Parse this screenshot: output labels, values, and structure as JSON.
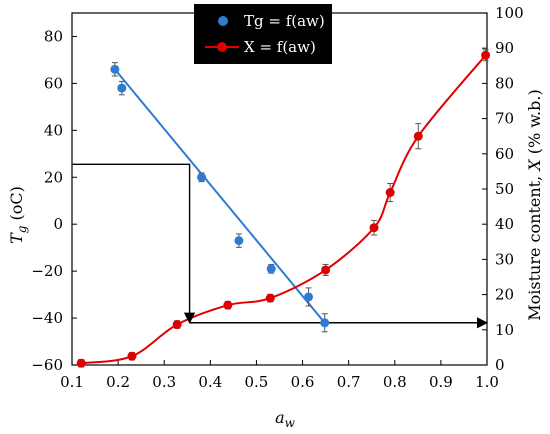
{
  "chart_data": {
    "type": "scatter",
    "x_axis": {
      "label_main": "a",
      "label_sub": "w",
      "range": [
        0.1,
        1.0
      ],
      "ticks": [
        "0.1",
        "0.2",
        "0.3",
        "0.4",
        "0.5",
        "0.6",
        "0.7",
        "0.8",
        "0.9",
        "1.0"
      ]
    },
    "y_left_axis": {
      "label_main": "T",
      "label_sub": "g",
      "label_unit": " (oC)",
      "range": [
        -60,
        90
      ],
      "ticks": [
        "80",
        "60",
        "40",
        "20",
        "0",
        "−20",
        "−40",
        "−60"
      ]
    },
    "y_right_axis": {
      "label_prefix": "Moisture content, ",
      "label_var": "X",
      "label_unit": " (% w.b.)",
      "range": [
        0,
        100
      ],
      "ticks": [
        "100",
        "90",
        "80",
        "70",
        "60",
        "50",
        "40",
        "30",
        "20",
        "10",
        "0"
      ]
    },
    "legend": {
      "position": "top-center",
      "background": "#000000"
    },
    "series": [
      {
        "name": "Tg = f(aw)",
        "axis": "left",
        "color": "#2e7bd1",
        "points": [
          {
            "x": 0.193,
            "y": 66,
            "err": 2
          },
          {
            "x": 0.208,
            "y": 58,
            "err": 2
          },
          {
            "x": 0.381,
            "y": 20,
            "err": 1
          },
          {
            "x": 0.462,
            "y": -7,
            "err": 2
          },
          {
            "x": 0.532,
            "y": -19,
            "err": 1
          },
          {
            "x": 0.613,
            "y": -31,
            "err": 3
          },
          {
            "x": 0.648,
            "y": -42,
            "err": 3
          }
        ],
        "fit": [
          [
            0.193,
            66
          ],
          [
            0.648,
            -42
          ]
        ]
      },
      {
        "name": "X = f(aw)",
        "axis": "right",
        "color": "#e00000",
        "points": [
          {
            "x": 0.12,
            "y": 0.5,
            "err": 0.5
          },
          {
            "x": 0.23,
            "y": 2.5,
            "err": 0.5
          },
          {
            "x": 0.328,
            "y": 11.5,
            "err": 0.5
          },
          {
            "x": 0.438,
            "y": 17,
            "err": 0.5
          },
          {
            "x": 0.53,
            "y": 19,
            "err": 0.5
          },
          {
            "x": 0.65,
            "y": 27,
            "err": 1
          },
          {
            "x": 0.755,
            "y": 39,
            "err": 1.5
          },
          {
            "x": 0.79,
            "y": 49,
            "err": 2
          },
          {
            "x": 0.851,
            "y": 65,
            "err": 3
          },
          {
            "x": 0.997,
            "y": 88,
            "err": 1
          }
        ]
      }
    ],
    "annotations": {
      "arrow_color": "#000000",
      "path_1": [
        [
          0.1,
          25.5
        ],
        [
          0.355,
          25.5
        ],
        [
          0.355,
          -42
        ]
      ],
      "path_2": [
        [
          0.355,
          -42
        ],
        [
          1.0,
          -42
        ]
      ]
    }
  }
}
